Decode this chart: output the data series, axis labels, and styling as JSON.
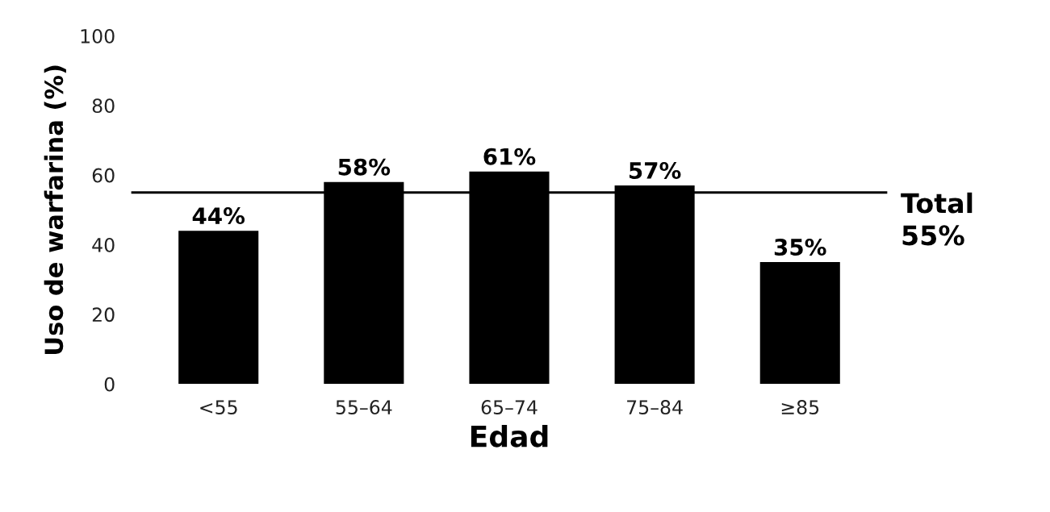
{
  "chart_data": {
    "type": "bar",
    "xlabel": "Edad",
    "ylabel": "Uso de warfarina (%)",
    "categories": [
      "<55",
      "55–64",
      "65–74",
      "75–84",
      "≥85"
    ],
    "values": [
      44,
      58,
      61,
      57,
      35
    ],
    "value_labels": [
      "44%",
      "58%",
      "61%",
      "57%",
      "35%"
    ],
    "color": "#000000",
    "ylim": [
      0,
      100
    ],
    "yticks": [
      0,
      20,
      40,
      60,
      80,
      100
    ],
    "grid": false,
    "legend": false,
    "ref_lines": [
      {
        "axis": "y",
        "value": 55,
        "label": "Total\n55%",
        "color": "#000000",
        "line_style": "solid"
      }
    ]
  }
}
